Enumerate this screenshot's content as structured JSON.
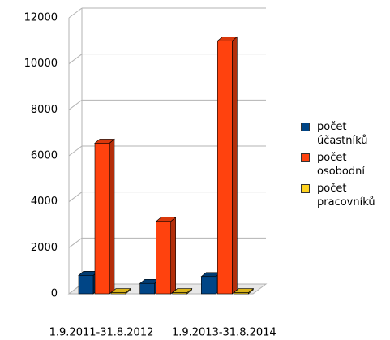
{
  "chart_data": {
    "type": "bar3d",
    "categories": [
      "1.9.2011-31.8.2012",
      null,
      "1.9.2013-31.8.2014"
    ],
    "series": [
      {
        "name": "počet účastníků",
        "color": "#004586",
        "values": [
          800,
          450,
          750
        ]
      },
      {
        "name": "počet osobodní",
        "color": "#ff420e",
        "values": [
          6550,
          3150,
          11000
        ]
      },
      {
        "name": "počet pracovníků",
        "color": "#ffd320",
        "values": [
          50,
          50,
          50
        ]
      }
    ],
    "ylim": [
      0,
      12000
    ],
    "yticks": [
      0,
      2000,
      4000,
      6000,
      8000,
      10000,
      12000
    ],
    "grid": true,
    "legend": "right"
  }
}
